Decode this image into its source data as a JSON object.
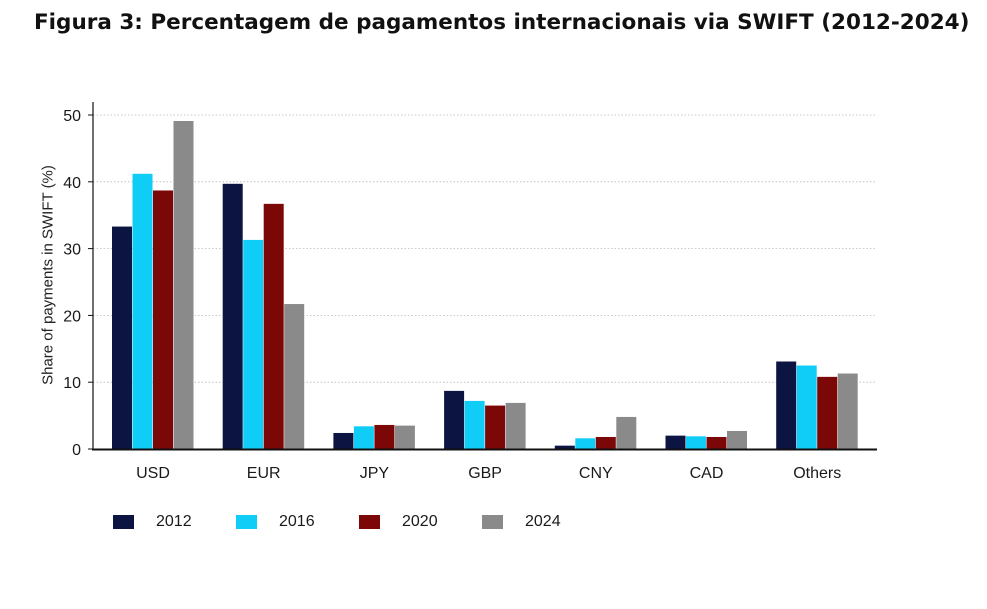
{
  "page_title": "Figura 3: Percentagem de pagamentos internacionais via SWIFT (2012-2024)",
  "chart_data": {
    "type": "bar",
    "title": "Figura 3: Percentagem de pagamentos internacionais via SWIFT (2012-2024)",
    "xlabel": "",
    "ylabel": "Share of payments in SWIFT (%)",
    "ylim": [
      0,
      50
    ],
    "yticks": [
      0,
      10,
      20,
      30,
      40,
      50
    ],
    "grid": true,
    "legend_position": "bottom",
    "categories": [
      "USD",
      "EUR",
      "JPY",
      "GBP",
      "CNY",
      "CAD",
      "Others"
    ],
    "series": [
      {
        "name": "2012",
        "color": "#0c1441",
        "values": [
          33.3,
          39.7,
          2.4,
          8.7,
          0.5,
          2.0,
          13.1
        ]
      },
      {
        "name": "2016",
        "color": "#10cdf7",
        "values": [
          41.2,
          31.3,
          3.4,
          7.2,
          1.6,
          1.9,
          12.5
        ]
      },
      {
        "name": "2020",
        "color": "#7c0707",
        "values": [
          38.7,
          36.7,
          3.6,
          6.5,
          1.8,
          1.8,
          10.8
        ]
      },
      {
        "name": "2024",
        "color": "#8a8a8a",
        "values": [
          49.1,
          21.7,
          3.5,
          6.9,
          4.8,
          2.7,
          11.3
        ]
      }
    ]
  }
}
